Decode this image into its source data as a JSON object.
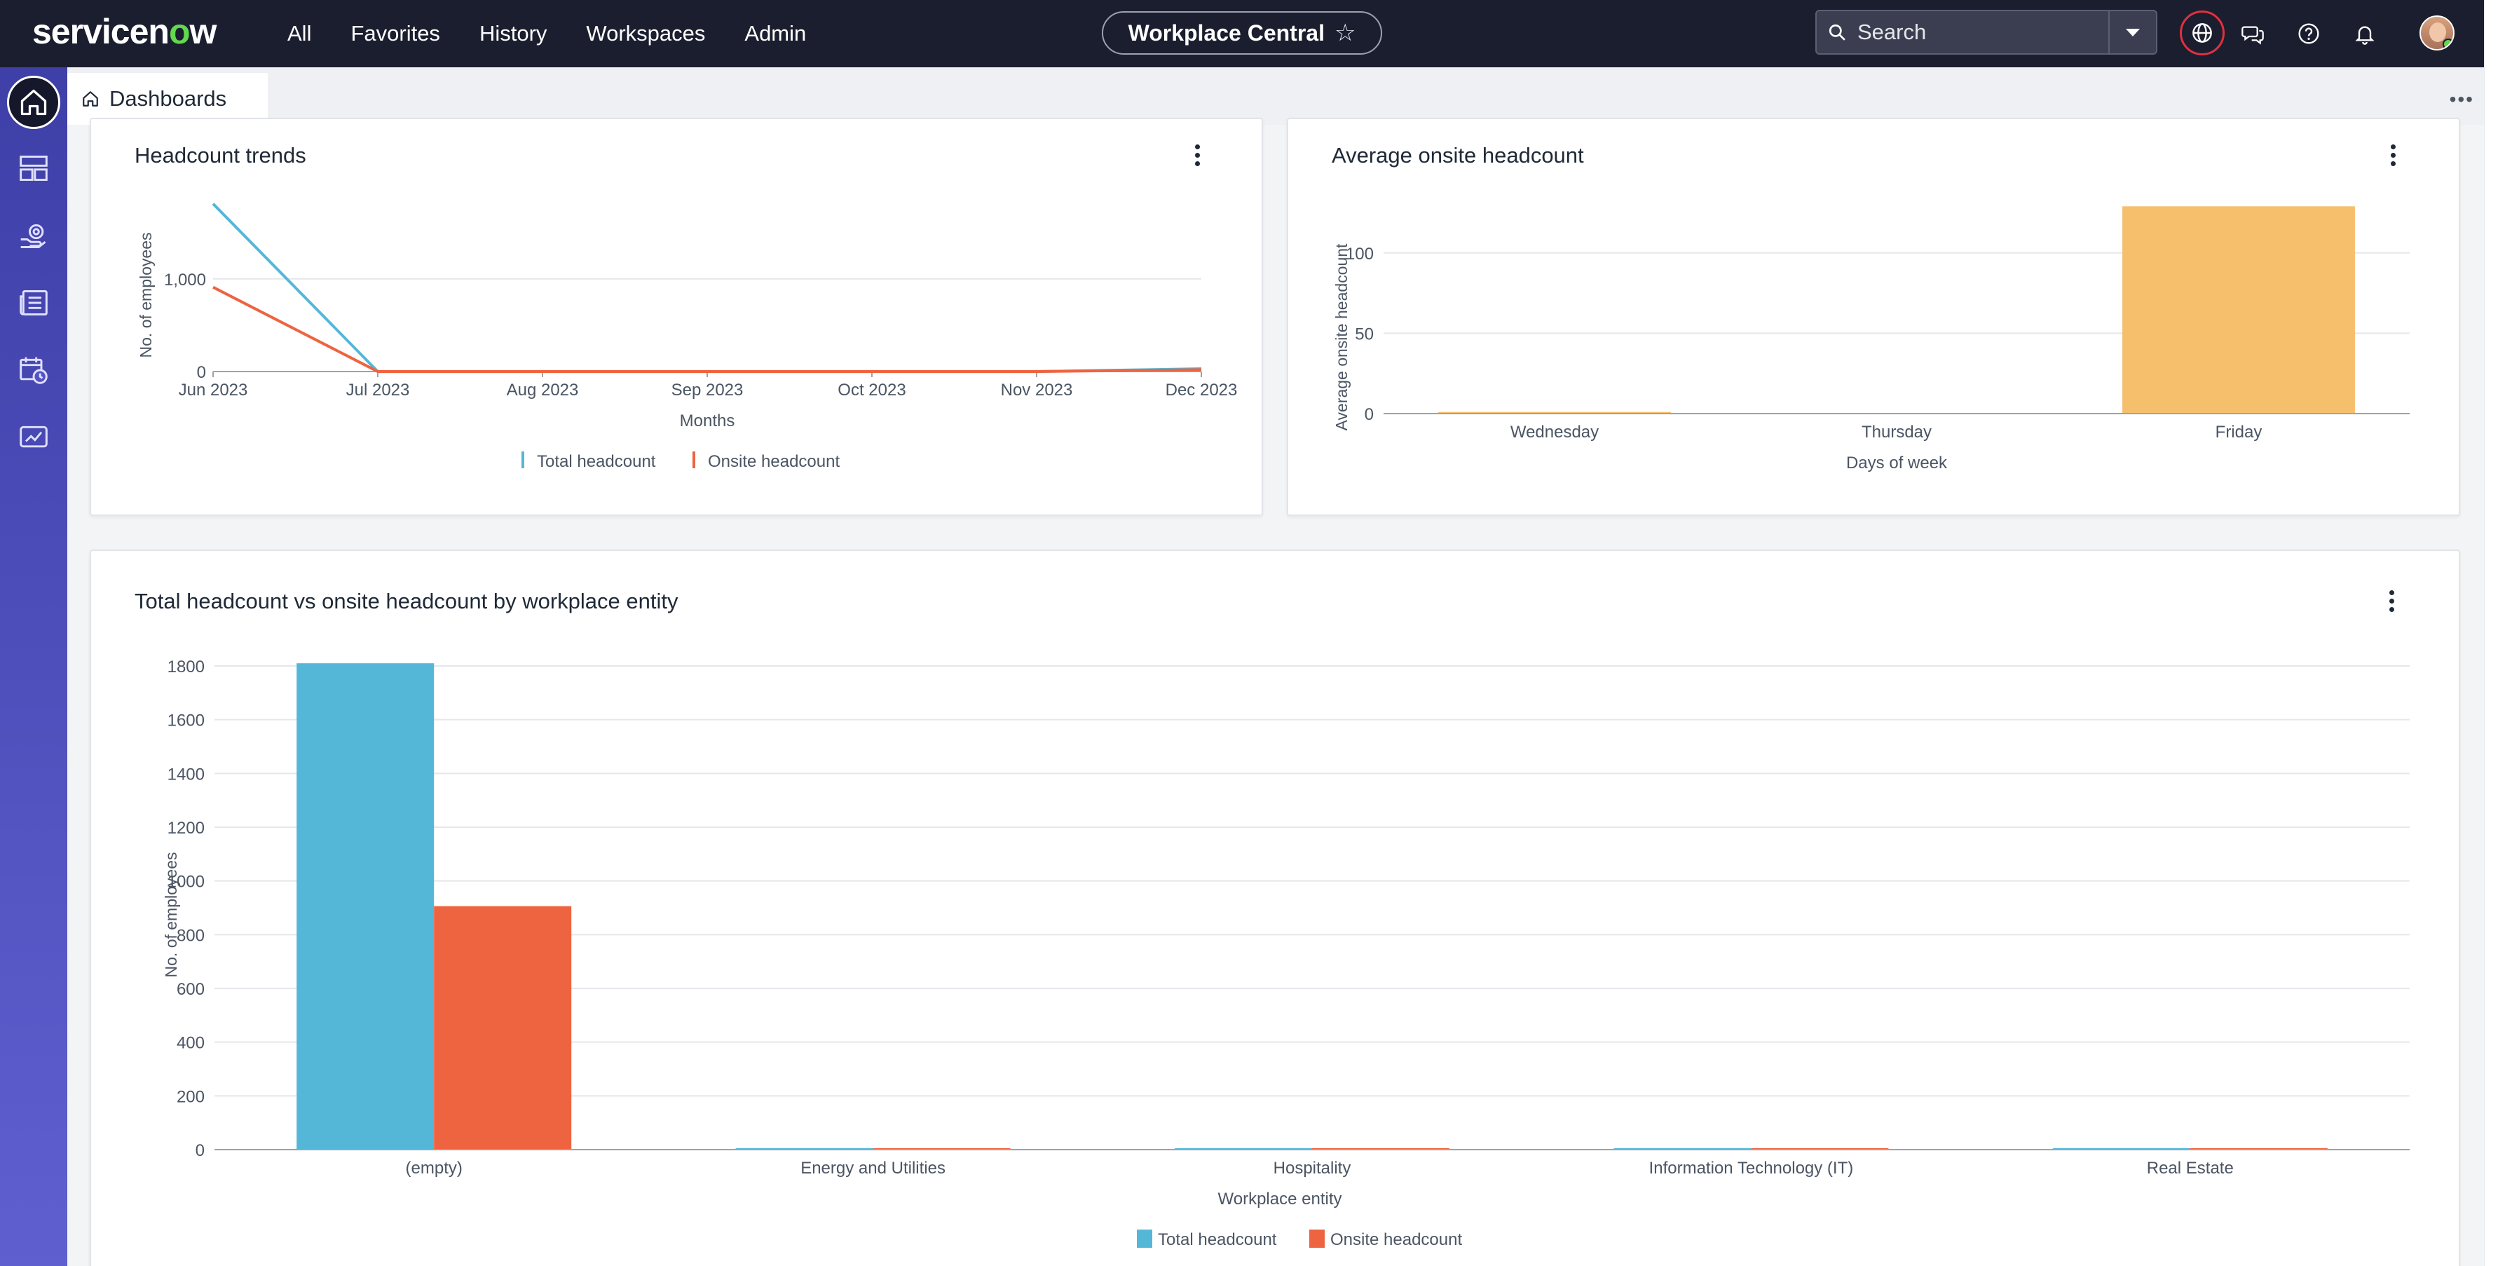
{
  "header": {
    "brand": {
      "service": "servicen",
      "accent": "o",
      "tail": "w"
    },
    "nav": [
      "All",
      "Favorites",
      "History",
      "Workspaces",
      "Admin"
    ],
    "workspace_pill": "Workplace Central",
    "search": {
      "placeholder": "Search"
    }
  },
  "tab": {
    "label": "Dashboards"
  },
  "colors": {
    "teal": "#55b7d8",
    "orange": "#ee6340",
    "amber": "#f5bf6c",
    "nav_bg": "#1b1e2e"
  },
  "icons": {
    "header": [
      "search-icon",
      "chevron-down-icon",
      "globe-icon",
      "chat-icon",
      "help-icon",
      "bell-icon"
    ],
    "sidebar": [
      "home-icon",
      "layout-icon",
      "workplace-services-icon",
      "reservations-icon",
      "calendar-clock-icon",
      "dashboard-icon"
    ]
  },
  "cards": {
    "headcount_trends": {
      "title": "Headcount trends"
    },
    "avg_onsite": {
      "title": "Average onsite headcount"
    },
    "entity": {
      "title": "Total headcount vs onsite headcount by workplace entity"
    }
  },
  "chart_data": [
    {
      "type": "line",
      "title": "Headcount trends",
      "xlabel": "Months",
      "ylabel": "No. of employees",
      "categories": [
        "Jun 2023",
        "Jul 2023",
        "Aug 2023",
        "Sep 2023",
        "Oct 2023",
        "Nov 2023",
        "Dec 2023"
      ],
      "yticks": [
        "0",
        "1,000"
      ],
      "ylim": [
        0,
        1800
      ],
      "grid": true,
      "legend": "bottom",
      "series": [
        {
          "name": "Total headcount",
          "color": "#55b7d8",
          "values": [
            1810,
            0,
            0,
            0,
            0,
            0,
            30
          ]
        },
        {
          "name": "Onsite headcount",
          "color": "#ee6340",
          "values": [
            910,
            0,
            0,
            0,
            0,
            0,
            20
          ]
        }
      ]
    },
    {
      "type": "bar",
      "title": "Average onsite headcount",
      "xlabel": "Days of week",
      "ylabel": "Average onsite headcount",
      "categories": [
        "Wednesday",
        "Thursday",
        "Friday"
      ],
      "values": [
        1,
        0,
        129
      ],
      "yticks": [
        "0",
        "50",
        "100"
      ],
      "ylim": [
        0,
        130
      ],
      "grid": true,
      "color": "#f5bf6c"
    },
    {
      "type": "bar",
      "title": "Total headcount vs onsite headcount by workplace entity",
      "xlabel": "Workplace entity",
      "ylabel": "No. of employees",
      "categories": [
        "(empty)",
        "Energy and Utilities",
        "Hospitality",
        "Information Technology (IT)",
        "Real Estate"
      ],
      "yticks": [
        "0",
        "200",
        "400",
        "600",
        "800",
        "1000",
        "1200",
        "1400",
        "1600",
        "1800"
      ],
      "ylim": [
        0,
        1800
      ],
      "grid": true,
      "legend": "bottom",
      "series": [
        {
          "name": "Total headcount",
          "color": "#55b7d8",
          "values": [
            1810,
            2,
            2,
            2,
            2
          ]
        },
        {
          "name": "Onsite headcount",
          "color": "#ee6340",
          "values": [
            906,
            1,
            1,
            1,
            1
          ]
        }
      ]
    }
  ]
}
